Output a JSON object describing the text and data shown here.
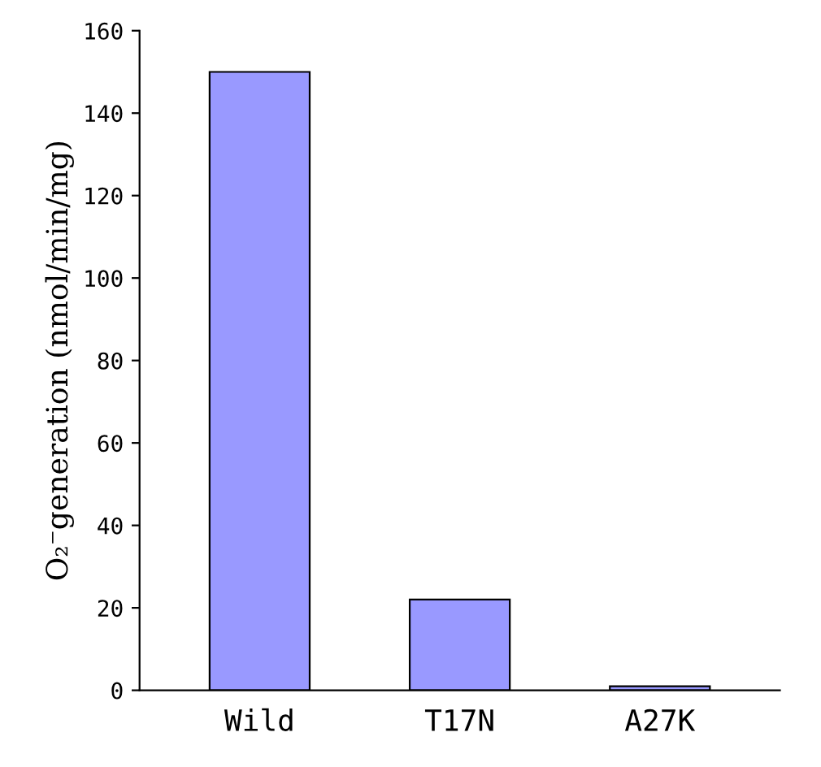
{
  "chart_data": {
    "type": "bar",
    "ylabel": "O₂⁻generation (nmol/min/mg)",
    "categories": [
      "Wild",
      "T17N",
      "A27K"
    ],
    "values": [
      150,
      22,
      1
    ],
    "color": "#9999ff",
    "ylim": [
      0,
      160
    ],
    "yticks": [
      0,
      20,
      40,
      60,
      80,
      100,
      120,
      140,
      160
    ],
    "grid": false,
    "legend": false
  }
}
